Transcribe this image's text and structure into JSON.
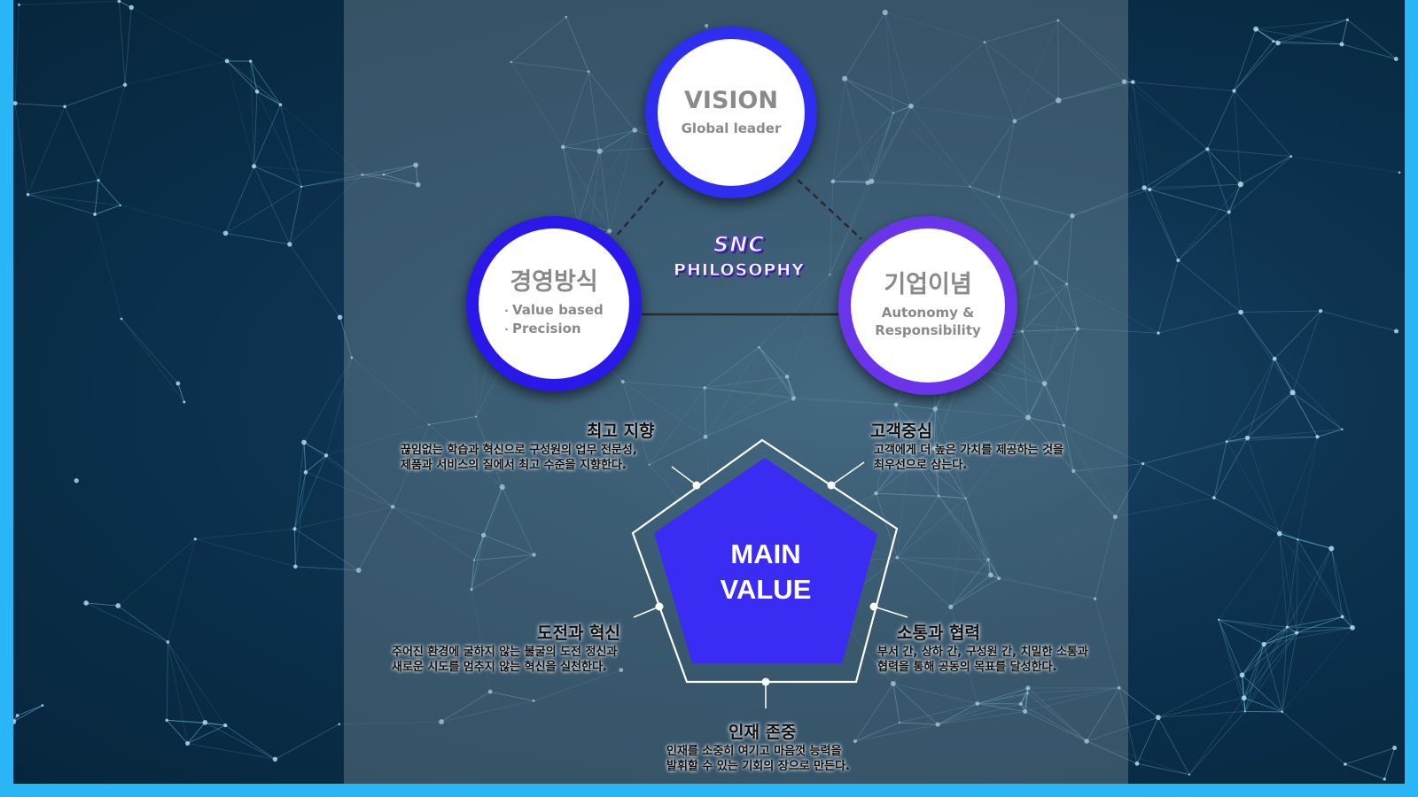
{
  "colors": {
    "vision_ring": "#2f2df0",
    "management_ring": "#2a17ea",
    "philosophy_ring": "#6a35ea",
    "pentagon_fill": "#3b2cf4",
    "frame_border": "#2ab6f4"
  },
  "brand": {
    "logo": "SNC",
    "subtitle": "PHILOSOPHY"
  },
  "vision": {
    "title": "VISION",
    "subtitle": "Global leader"
  },
  "management": {
    "title": "경영방식",
    "items": [
      "Value based",
      "Precision"
    ]
  },
  "philosophy": {
    "title": "기업이념",
    "line1": "Autonomy &",
    "line2": "Responsibility"
  },
  "main_value": {
    "line1": "MAIN",
    "line2": "VALUE"
  },
  "values": {
    "top_left": {
      "title": "최고 지향",
      "line1": "끊임없는 학습과 혁신으로 구성원의 업무 전문성,",
      "line2": "제품과 서비스의 질에서 최고 수준을 지향한다."
    },
    "top_right": {
      "title": "고객중심",
      "line1": "고객에게 더 높은 가치를 제공하는 것을",
      "line2": "최우선으로 삼는다."
    },
    "left": {
      "title": "도전과 혁신",
      "line1": "주어진 환경에 굴하지 않는 불굴의 도전 정신과",
      "line2": "새로운 시도를 멈추지 않는 혁신을 실천한다."
    },
    "right": {
      "title": "소통과 협력",
      "line1": "부서 간, 상하 간, 구성원 간, 치밀한 소통과",
      "line2": "협력을 통해 공동의 목표를 달성한다."
    },
    "bottom": {
      "title": "인재 존중",
      "line1": "인재를 소중히 여기고 마음껏 능력을",
      "line2": "발휘할 수 있는 기회의 장으로 만든다."
    }
  }
}
